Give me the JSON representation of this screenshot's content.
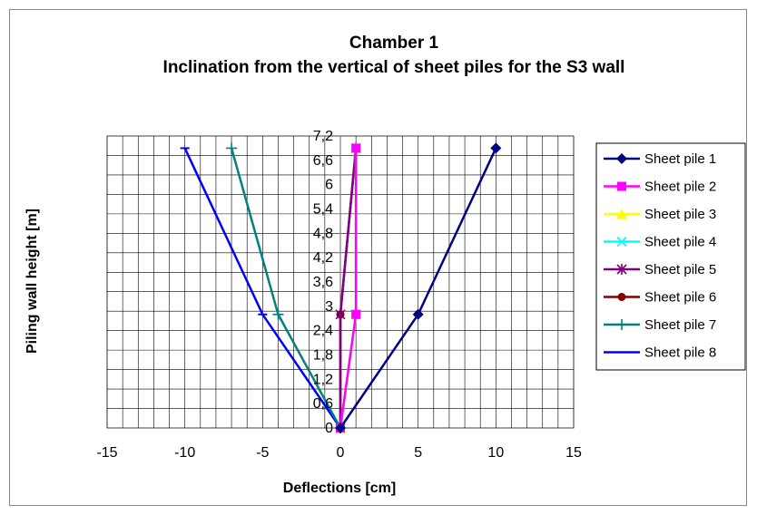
{
  "chart_data": {
    "type": "line",
    "title": "Chamber 1",
    "subtitle": "Inclination from the vertical of sheet piles for the S3 wall",
    "xlabel": "Deflections  [cm]",
    "ylabel": "Piling wall height [m]",
    "xlim": [
      -15,
      15
    ],
    "ylim": [
      0,
      7.2
    ],
    "xticks": [
      "-15",
      "-10",
      "-5",
      "0",
      "5",
      "10",
      "15"
    ],
    "yticks": [
      "0",
      "0,6",
      "1,2",
      "1,8",
      "2,4",
      "3",
      "3,6",
      "4,2",
      "4,8",
      "5,4",
      "6",
      "6,6",
      "7,2"
    ],
    "grid": true,
    "legend_position": "right",
    "series": [
      {
        "name": "Sheet pile 1",
        "color": "#000080",
        "marker": "diamond",
        "x": [
          0,
          5,
          10
        ],
        "y": [
          0,
          2.8,
          6.9
        ]
      },
      {
        "name": "Sheet pile 2",
        "color": "#FF00FF",
        "marker": "square",
        "x": [
          0,
          1,
          1
        ],
        "y": [
          0,
          2.8,
          6.9
        ]
      },
      {
        "name": "Sheet pile 3",
        "color": "#FFFF00",
        "marker": "triangle",
        "x": [
          0,
          1,
          1
        ],
        "y": [
          0,
          2.8,
          6.9
        ]
      },
      {
        "name": "Sheet pile 4",
        "color": "#00FFFF",
        "marker": "x",
        "x": [
          0,
          1,
          1
        ],
        "y": [
          0,
          2.8,
          6.9
        ]
      },
      {
        "name": "Sheet pile 5",
        "color": "#800080",
        "marker": "star",
        "x": [
          0,
          0,
          1
        ],
        "y": [
          0,
          2.8,
          6.9
        ]
      },
      {
        "name": "Sheet pile 6",
        "color": "#800000",
        "marker": "circle",
        "x": [
          0,
          0,
          1
        ],
        "y": [
          0,
          2.8,
          6.9
        ]
      },
      {
        "name": "Sheet pile 7",
        "color": "#008080",
        "marker": "plus",
        "x": [
          0,
          -4,
          -7
        ],
        "y": [
          0,
          2.8,
          6.9
        ]
      },
      {
        "name": "Sheet pile 8",
        "color": "#0000FF",
        "marker": "dash",
        "x": [
          0,
          -5,
          -10
        ],
        "y": [
          0,
          2.8,
          6.9
        ]
      }
    ]
  }
}
